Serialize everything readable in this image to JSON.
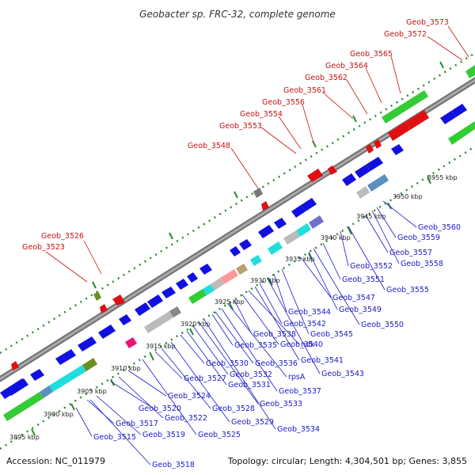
{
  "title": "Geobacter sp. FRC-32, complete genome",
  "footer": {
    "accession": "Accession: NC_011979",
    "info": "Topology: circular; Length: 4,304,501 bp; Genes: 3,855"
  },
  "colors": {
    "backbone": "#8c8c8c",
    "ticks": "#2e8b2e",
    "forward_gene": "#1010e0",
    "reverse_gene": "#e01010",
    "blue_label": "#1a1acc",
    "red_label": "#cc1111",
    "cds_green": "#33cc33",
    "cds_cyan": "#22dddd",
    "cds_gray": "#bbbbbb",
    "cds_pink": "#ff9999",
    "cds_magenta": "#ee1177"
  },
  "scale_labels": [
    "3895 kbp",
    "3900 kbp",
    "3905 kbp",
    "3910 kbp",
    "3915 kbp",
    "3920 kbp",
    "3925 kbp",
    "3930 kbp",
    "3935 kbp",
    "3940 kbp",
    "3945 kbp",
    "3950 kbp",
    "3955 kbp"
  ],
  "blue_labels": [
    "Geob_3515",
    "Geob_3517",
    "Geob_3518",
    "Geob_3519",
    "Geob_3520",
    "Geob_3522",
    "Geob_3524",
    "Geob_3525",
    "Geob_3527",
    "Geob_3528",
    "Geob_3529",
    "Geob_3530",
    "Geob_3531",
    "Geob_3532",
    "Geob_3533",
    "Geob_3534",
    "Geob_3535",
    "Geob_3536",
    "Geob_3537",
    "rpsA",
    "Geob_3538",
    "Geob_3540",
    "ndk",
    "Geob_3541",
    "Geob_3542",
    "Geob_3543",
    "Geob_3544",
    "Geob_3545",
    "Geob_3547",
    "Geob_3549",
    "Geob_3550",
    "Geob_3551",
    "Geob_3552",
    "Geob_3555",
    "Geob_3557",
    "Geob_3558",
    "Geob_3559",
    "Geob_3560"
  ],
  "red_labels": [
    "Geob_3523",
    "Geob_3526",
    "Geob_3548",
    "Geob_3553",
    "Geob_3554",
    "Geob_3556",
    "Geob_3561",
    "Geob_3562",
    "Geob_3564",
    "Geob_3565",
    "Geob_3572",
    "Geob_3573"
  ]
}
